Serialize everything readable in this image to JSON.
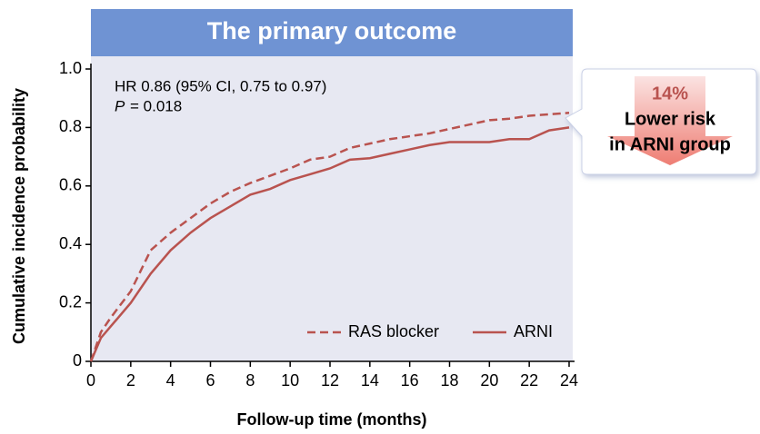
{
  "chart_data": {
    "type": "line",
    "title": "The primary outcome",
    "xlabel": "Follow-up time (months)",
    "ylabel": "Cumulative incidence probability",
    "annotations": {
      "hr": "HR 0.86 (95% CI, 0.75 to 0.97)",
      "p_symbol": "P",
      "p_value": "= 0.018"
    },
    "callout": {
      "percent": "14%",
      "line1": "Lower risk",
      "line2": "in ARNI group"
    },
    "x": [
      0,
      0.5,
      1,
      2,
      3,
      4,
      5,
      6,
      7,
      8,
      9,
      10,
      11,
      12,
      13,
      14,
      15,
      16,
      17,
      18,
      19,
      20,
      21,
      22,
      23,
      24
    ],
    "series": [
      {
        "name": "RAS blocker",
        "color": "#b9534f",
        "dash": true,
        "values": [
          0,
          0.1,
          0.15,
          0.24,
          0.38,
          0.44,
          0.49,
          0.54,
          0.58,
          0.61,
          0.635,
          0.66,
          0.69,
          0.7,
          0.73,
          0.745,
          0.76,
          0.77,
          0.78,
          0.795,
          0.81,
          0.825,
          0.83,
          0.84,
          0.845,
          0.85
        ]
      },
      {
        "name": "ARNI",
        "color": "#b9534f",
        "dash": false,
        "values": [
          0,
          0.08,
          0.12,
          0.2,
          0.3,
          0.38,
          0.44,
          0.49,
          0.53,
          0.57,
          0.59,
          0.62,
          0.64,
          0.66,
          0.69,
          0.695,
          0.71,
          0.725,
          0.74,
          0.75,
          0.75,
          0.75,
          0.76,
          0.76,
          0.79,
          0.8
        ]
      }
    ],
    "xlim": [
      0,
      24
    ],
    "xticks": [
      0,
      2,
      4,
      6,
      8,
      10,
      12,
      14,
      16,
      18,
      20,
      22,
      24
    ],
    "ylim": [
      0,
      1
    ],
    "yticks": [
      0,
      0.2,
      0.4,
      0.6,
      0.8,
      {
        "value": 1,
        "label": "1.0"
      }
    ],
    "legend": "lower right",
    "grid": false
  }
}
